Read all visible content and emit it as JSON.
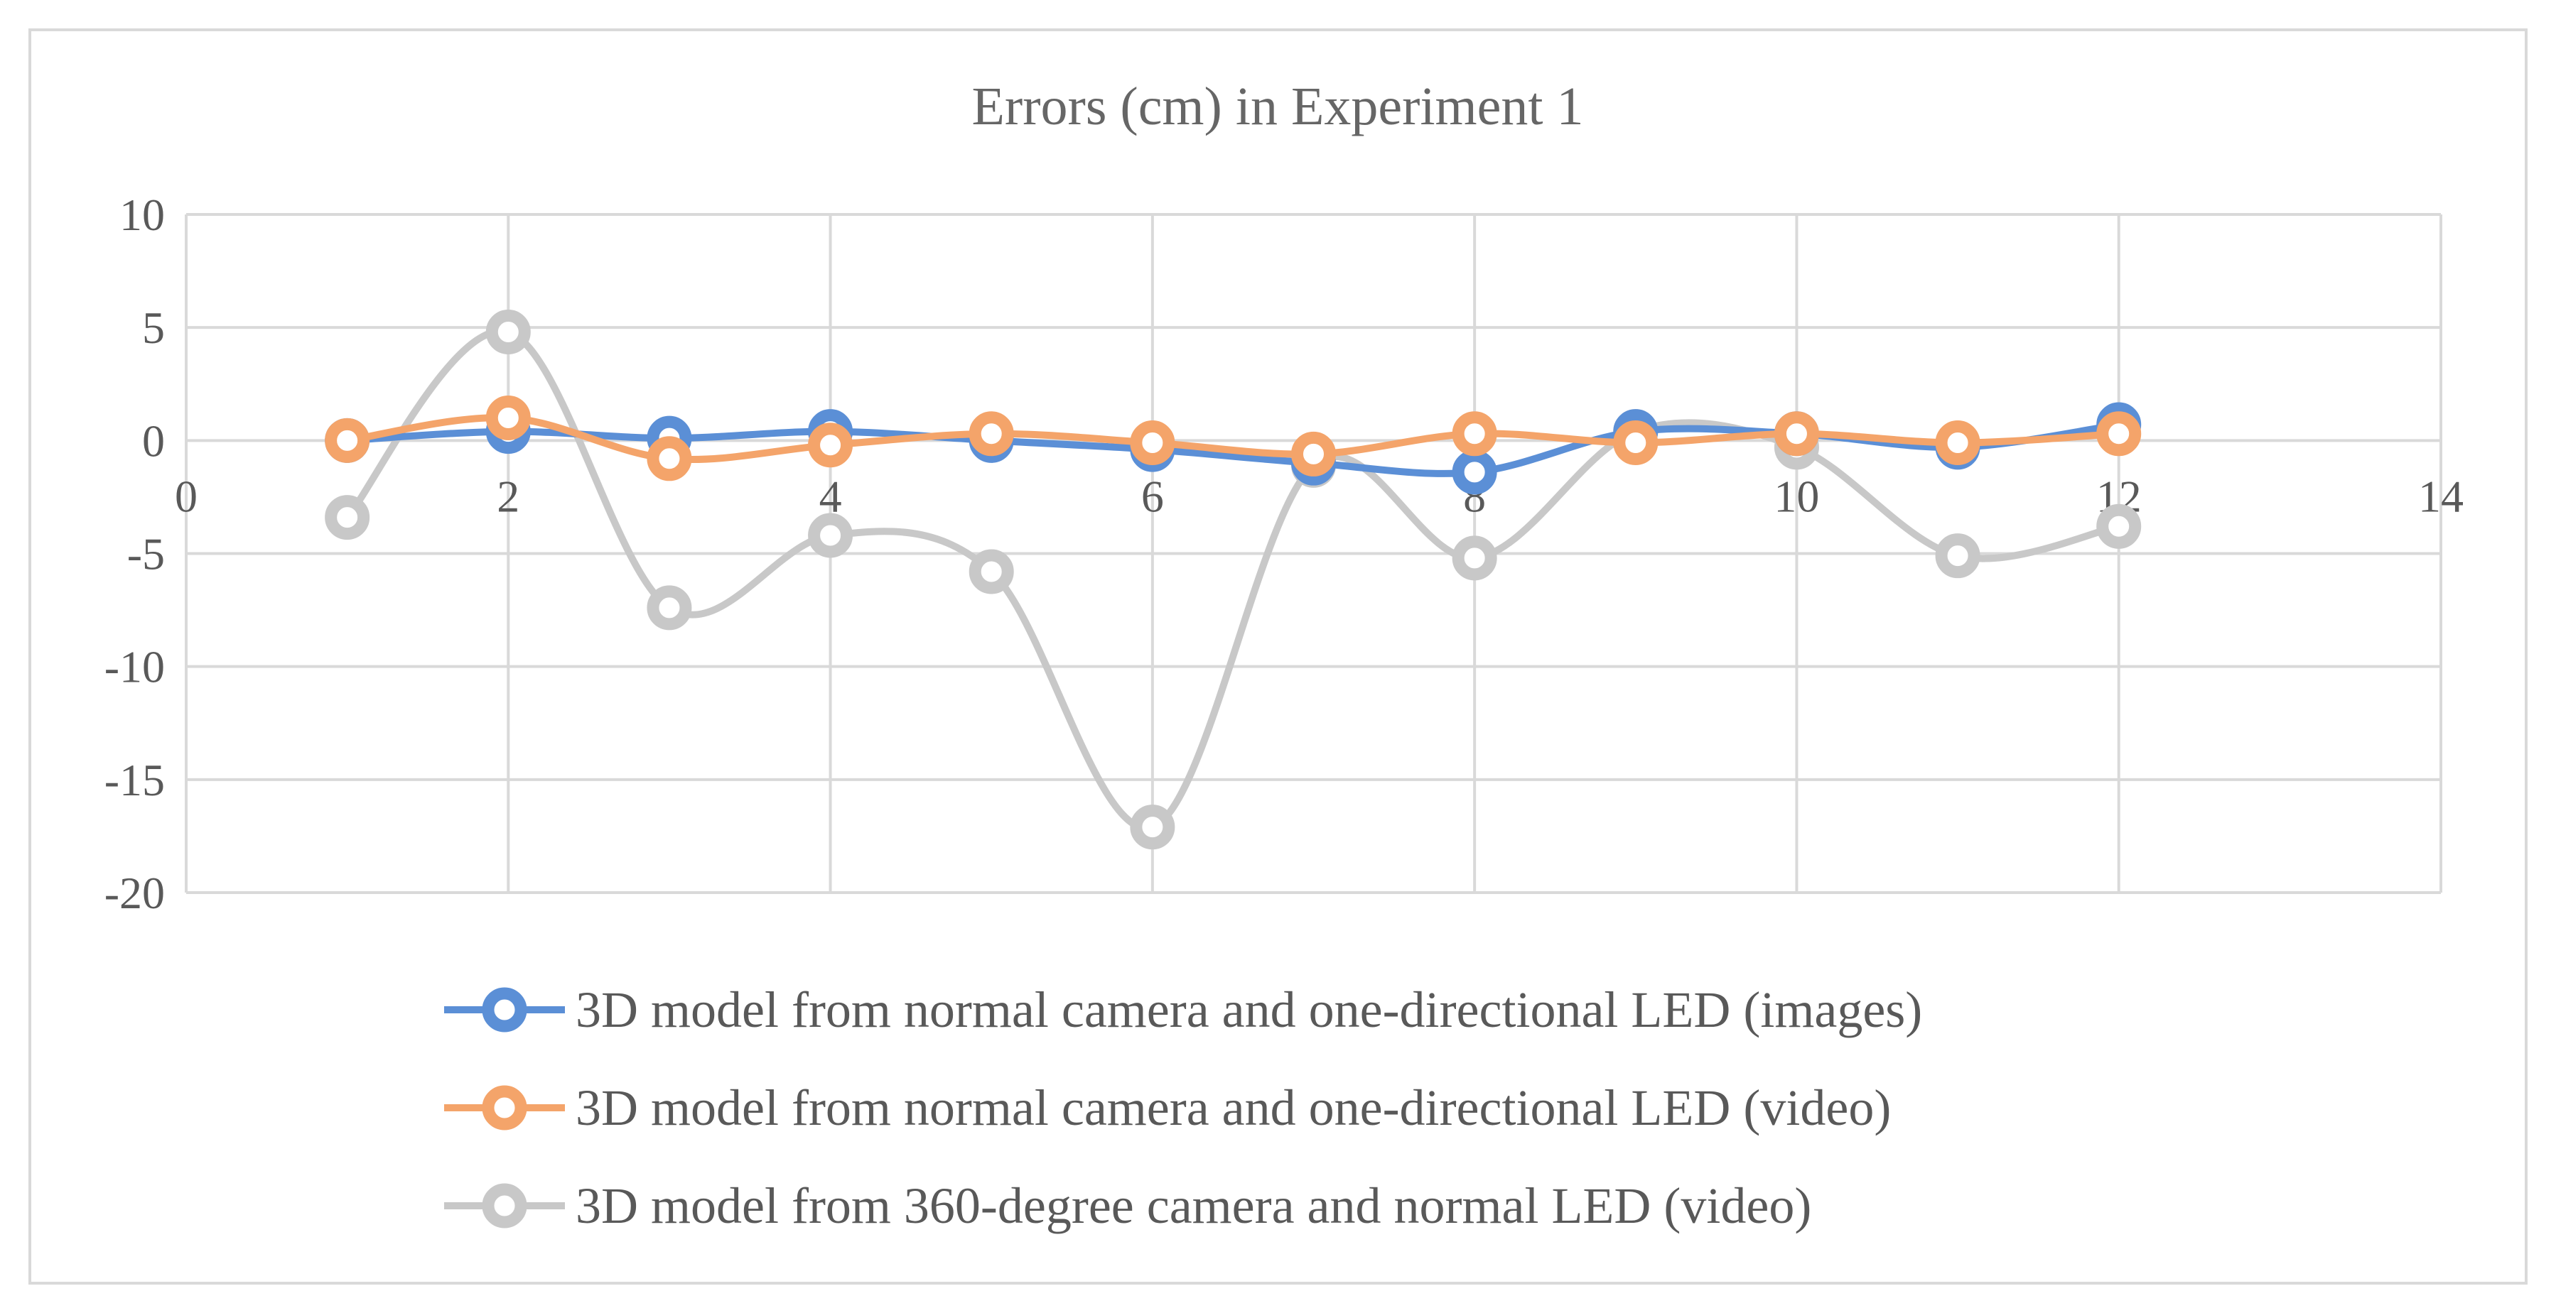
{
  "chart_data": {
    "type": "scatter",
    "title": "Errors (cm) in Experiment 1",
    "xlabel": "",
    "ylabel": "",
    "xlim": [
      0,
      14
    ],
    "ylim": [
      -20,
      10
    ],
    "x_ticks": [
      0,
      2,
      4,
      6,
      8,
      10,
      12,
      14
    ],
    "y_ticks": [
      10,
      5,
      0,
      -5,
      -10,
      -15,
      -20
    ],
    "grid": true,
    "smooth_lines": true,
    "legend_position": "bottom",
    "series": [
      {
        "name": "3D model from normal camera and one-directional LED (images)",
        "color": "#5b8fd6",
        "x": [
          1,
          2,
          3,
          4,
          5,
          6,
          7,
          8,
          9,
          10,
          11,
          12
        ],
        "y": [
          0.0,
          0.4,
          0.1,
          0.4,
          0.0,
          -0.4,
          -1.0,
          -1.4,
          0.4,
          0.3,
          -0.3,
          0.7
        ]
      },
      {
        "name": "3D model from normal camera and one-directional LED (video)",
        "color": "#f4a46a",
        "x": [
          1,
          2,
          3,
          4,
          5,
          6,
          7,
          8,
          9,
          10,
          11,
          12
        ],
        "y": [
          0.0,
          1.0,
          -0.8,
          -0.2,
          0.3,
          -0.1,
          -0.6,
          0.3,
          -0.1,
          0.3,
          -0.1,
          0.3
        ]
      },
      {
        "name": "3D model from 360-degree camera and normal LED (video)",
        "color": "#c8c8c8",
        "x": [
          1,
          2,
          3,
          4,
          5,
          6,
          7,
          8,
          9,
          10,
          11,
          12
        ],
        "y": [
          -3.4,
          4.8,
          -7.4,
          -4.2,
          -5.8,
          -17.1,
          -1.1,
          -5.2,
          0.4,
          -0.3,
          -5.1,
          -3.8
        ]
      }
    ]
  }
}
